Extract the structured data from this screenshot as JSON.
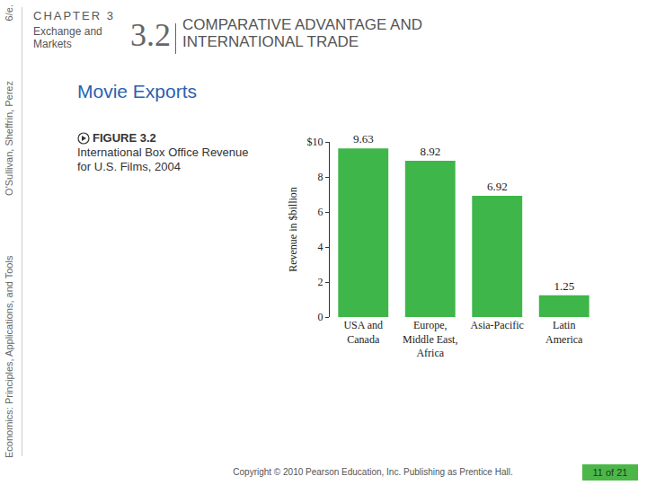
{
  "header": {
    "chapter": "CHAPTER 3",
    "chapter_title": "Exchange and Markets",
    "section_number": "3.2",
    "section_title": "COMPARATIVE ADVANTAGE AND INTERNATIONAL TRADE"
  },
  "sidebar": [
    "Economics: Principles, Applications, and Tools",
    "O'Sullivan, Sheffrin, Perez",
    "6/e."
  ],
  "heading": "Movie Exports",
  "figure": {
    "label": "FIGURE 3.2",
    "caption": "International Box Office Revenue for U.S. Films, 2004"
  },
  "footer": {
    "copyright": "Copyright © 2010  Pearson Education, Inc. Publishing as Prentice Hall.",
    "page": "11 of 21"
  },
  "chart_data": {
    "type": "bar",
    "y_label": "Revenue in $billion",
    "categories": [
      "USA and Canada",
      "Europe, Middle East, Africa",
      "Asia-Pacific",
      "Latin America"
    ],
    "values": [
      9.63,
      8.92,
      6.92,
      1.25
    ],
    "color": "#3fb649",
    "ylim": [
      0,
      10
    ],
    "yticks": [
      0,
      2,
      4,
      6,
      8,
      {
        "value": 10,
        "label": "$10"
      }
    ],
    "grid": false,
    "data_labels": true
  }
}
